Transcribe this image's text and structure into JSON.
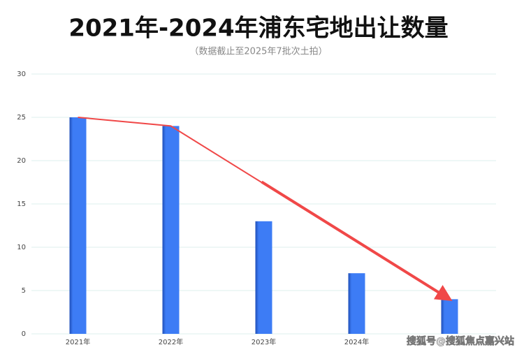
{
  "chart_data": {
    "type": "bar",
    "title": "2021年-2024年浦东宅地出让数量",
    "subtitle": "（数据截止至2025年7批次土拍）",
    "categories": [
      "2021年",
      "2022年",
      "2023年",
      "2024年",
      null
    ],
    "values": [
      25,
      24,
      13,
      7,
      4
    ],
    "color": "#3d7cf5",
    "ylim": [
      0,
      30
    ],
    "yticks": [
      0,
      5,
      10,
      15,
      20,
      25,
      30
    ],
    "grid": true,
    "watermark": "搜狐号@搜狐焦点嘉兴站"
  }
}
